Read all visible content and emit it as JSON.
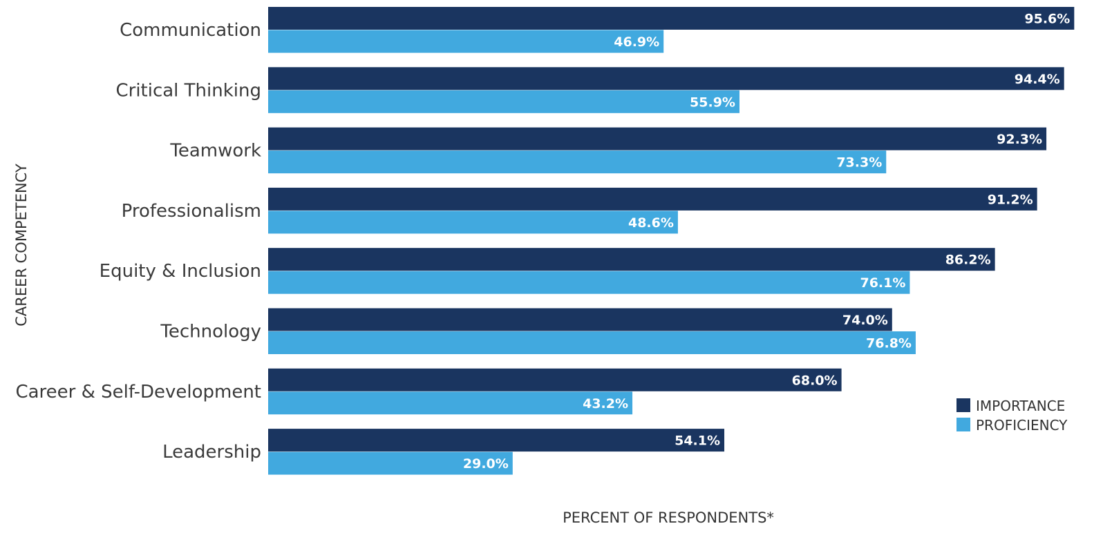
{
  "chart_data": {
    "type": "bar",
    "orientation": "horizontal",
    "categories": [
      "Communication",
      "Critical Thinking",
      "Teamwork",
      "Professionalism",
      "Equity & Inclusion",
      "Technology",
      "Career & Self-Development",
      "Leadership"
    ],
    "series": [
      {
        "name": "IMPORTANCE",
        "color": "#1a3560",
        "values": [
          95.6,
          94.4,
          92.3,
          91.2,
          86.2,
          74.0,
          68.0,
          54.1
        ],
        "labels": [
          "95.6%",
          "94.4%",
          "92.3%",
          "91.2%",
          "86.2%",
          "74.0%",
          "68.0%",
          "54.1%"
        ]
      },
      {
        "name": "PROFICIENCY",
        "color": "#41a9df",
        "values": [
          46.9,
          55.9,
          73.3,
          48.6,
          76.1,
          76.8,
          43.2,
          29.0
        ],
        "labels": [
          "46.9%",
          "55.9%",
          "73.3%",
          "48.6%",
          "76.1%",
          "76.8%",
          "43.2%",
          "29.0%"
        ]
      }
    ],
    "xlabel": "PERCENT OF RESPONDENTS*",
    "ylabel": "CAREER COMPETENCY",
    "xlim": [
      0,
      100
    ],
    "grid": false,
    "legend_position": "right"
  }
}
